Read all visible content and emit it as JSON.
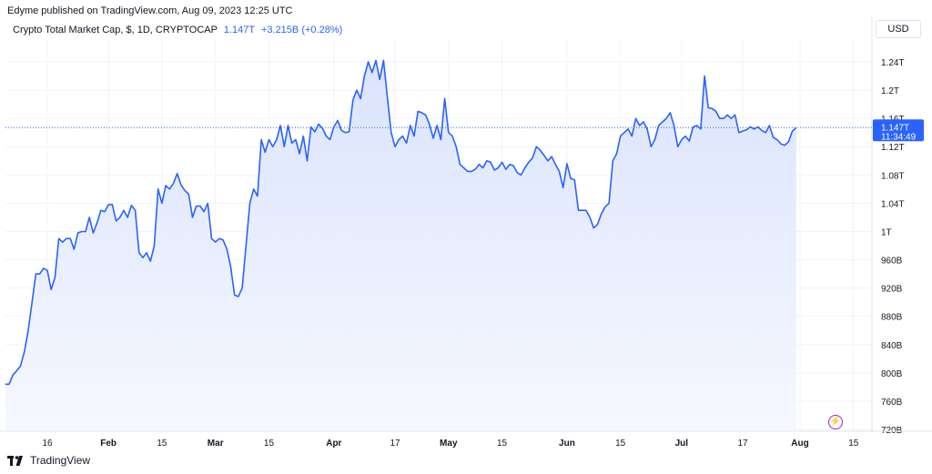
{
  "caption": "Edyme published on TradingView.com, Aug 09, 2023 12:25 UTC",
  "legend": {
    "symbol": "Crypto Total Market Cap, $, 1D, CRYPTOCAP",
    "value": "1.147T",
    "change": "+3.215B (+0.28%)"
  },
  "currency": "USD",
  "last_price_label": {
    "price": "1.147T",
    "countdown": "11:34:49"
  },
  "brand": "TradingView",
  "colors": {
    "line": "#2962ff",
    "area_top": "#dbe4fd",
    "area_bottom": "#f6f8fe",
    "grid": "#f0f3fa",
    "price_tag": "#2962ff",
    "text": "#131722"
  },
  "chart_data": {
    "type": "area",
    "x_ticks": [
      "16",
      "Feb",
      "15",
      "Mar",
      "15",
      "Apr",
      "17",
      "May",
      "15",
      "Jun",
      "15",
      "Jul",
      "17",
      "Aug",
      "15"
    ],
    "y_ticks": [
      "720B",
      "760B",
      "800B",
      "840B",
      "880B",
      "920B",
      "960B",
      "1T",
      "1.04T",
      "1.08T",
      "1.12T",
      "1.16T",
      "1.2T",
      "1.24T"
    ],
    "ylim": [
      0.72,
      1.26
    ],
    "y_unit": "T",
    "last_value": 1.147,
    "series": [
      {
        "x_start": "2023-01-05",
        "interval_days": 1,
        "values": [
          0.784,
          0.784,
          0.797,
          0.803,
          0.81,
          0.83,
          0.86,
          0.9,
          0.94,
          0.94,
          0.948,
          0.945,
          0.918,
          0.935,
          0.99,
          0.985,
          0.99,
          0.99,
          0.975,
          0.998,
          1.0,
          1.0,
          1.02,
          0.998,
          1.012,
          1.03,
          1.028,
          1.038,
          1.038,
          1.015,
          1.02,
          1.03,
          1.02,
          1.037,
          1.03,
          0.97,
          0.963,
          0.97,
          0.958,
          0.98,
          1.06,
          1.04,
          1.065,
          1.06,
          1.068,
          1.082,
          1.066,
          1.058,
          1.053,
          1.02,
          1.036,
          1.036,
          1.028,
          1.04,
          0.99,
          0.985,
          0.99,
          0.988,
          0.975,
          0.95,
          0.91,
          0.908,
          0.92,
          0.98,
          1.04,
          1.06,
          1.05,
          1.13,
          1.112,
          1.13,
          1.12,
          1.13,
          1.15,
          1.12,
          1.15,
          1.125,
          1.13,
          1.11,
          1.135,
          1.1,
          1.148,
          1.141,
          1.152,
          1.146,
          1.135,
          1.13,
          1.148,
          1.157,
          1.143,
          1.14,
          1.141,
          1.186,
          1.2,
          1.188,
          1.22,
          1.24,
          1.225,
          1.242,
          1.215,
          1.242,
          1.19,
          1.14,
          1.12,
          1.13,
          1.135,
          1.125,
          1.15,
          1.135,
          1.17,
          1.168,
          1.165,
          1.152,
          1.132,
          1.15,
          1.13,
          1.188,
          1.14,
          1.135,
          1.12,
          1.095,
          1.09,
          1.085,
          1.085,
          1.088,
          1.095,
          1.09,
          1.1,
          1.098,
          1.087,
          1.09,
          1.098,
          1.088,
          1.095,
          1.093,
          1.083,
          1.08,
          1.09,
          1.098,
          1.104,
          1.12,
          1.115,
          1.108,
          1.1,
          1.106,
          1.095,
          1.085,
          1.062,
          1.096,
          1.075,
          1.073,
          1.03,
          1.03,
          1.03,
          1.02,
          1.005,
          1.01,
          1.025,
          1.035,
          1.04,
          1.1,
          1.11,
          1.135,
          1.14,
          1.145,
          1.135,
          1.16,
          1.15,
          1.155,
          1.145,
          1.12,
          1.13,
          1.15,
          1.155,
          1.16,
          1.168,
          1.15,
          1.12,
          1.13,
          1.135,
          1.128,
          1.148,
          1.15,
          1.145,
          1.22,
          1.175,
          1.174,
          1.17,
          1.16,
          1.16,
          1.165,
          1.16,
          1.165,
          1.14,
          1.142,
          1.144,
          1.148,
          1.145,
          1.148,
          1.143,
          1.14,
          1.15,
          1.133,
          1.13,
          1.124,
          1.122,
          1.127,
          1.142,
          1.147
        ]
      }
    ]
  }
}
